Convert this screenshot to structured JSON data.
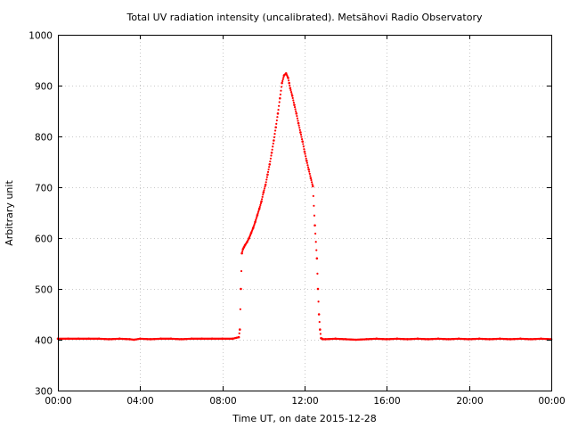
{
  "chart_data": {
    "type": "scatter",
    "title": "Total UV radiation intensity (uncalibrated). Metsähovi Radio Observatory",
    "xlabel": "Time UT, on date 2015-12-28",
    "ylabel": "Arbitrary unit",
    "xlim_hours": [
      0,
      24
    ],
    "ylim": [
      300,
      1000
    ],
    "x_ticks": [
      {
        "hours": 0,
        "label": "00:00"
      },
      {
        "hours": 4,
        "label": "04:00"
      },
      {
        "hours": 8,
        "label": "08:00"
      },
      {
        "hours": 12,
        "label": "12:00"
      },
      {
        "hours": 16,
        "label": "16:00"
      },
      {
        "hours": 20,
        "label": "20:00"
      },
      {
        "hours": 24,
        "label": "00:00"
      }
    ],
    "y_ticks": [
      300,
      400,
      500,
      600,
      700,
      800,
      900,
      1000
    ],
    "grid": true,
    "marker_color": "#ff0000",
    "series": [
      {
        "x_hours": [
          0.0,
          0.5,
          1.0,
          1.5,
          2.0,
          2.5,
          3.0,
          3.5,
          3.7,
          4.0,
          4.5,
          5.0,
          5.5,
          6.0,
          6.5,
          7.0,
          7.5,
          8.0,
          8.5,
          8.8,
          8.85,
          8.9,
          8.95,
          9.0,
          9.05,
          9.1,
          9.2,
          9.3,
          9.4,
          9.5,
          9.6,
          9.7,
          9.8,
          9.9,
          10.0,
          10.1,
          10.2,
          10.3,
          10.4,
          10.5,
          10.6,
          10.7,
          10.8,
          10.9,
          11.0,
          11.1,
          11.2,
          11.25,
          11.3,
          11.4,
          11.5,
          11.6,
          11.7,
          11.8,
          11.9,
          12.0,
          12.1,
          12.2,
          12.3,
          12.4,
          12.5,
          12.6,
          12.65,
          12.7,
          12.75,
          12.8,
          12.85,
          12.9,
          13.0,
          13.5,
          14.0,
          14.5,
          15.0,
          15.5,
          16.0,
          16.5,
          17.0,
          17.5,
          18.0,
          18.5,
          19.0,
          19.5,
          20.0,
          20.5,
          21.0,
          21.5,
          22.0,
          22.5,
          23.0,
          23.5,
          24.0
        ],
        "y": [
          402,
          402,
          402,
          402,
          402,
          401,
          402,
          401,
          400,
          402,
          401,
          402,
          402,
          401,
          402,
          402,
          402,
          402,
          402,
          405,
          420,
          500,
          570,
          578,
          582,
          586,
          592,
          600,
          610,
          620,
          632,
          645,
          658,
          672,
          690,
          705,
          725,
          745,
          768,
          792,
          818,
          845,
          875,
          905,
          920,
          924,
          915,
          905,
          895,
          880,
          862,
          845,
          826,
          808,
          790,
          770,
          752,
          735,
          718,
          702,
          625,
          560,
          500,
          450,
          420,
          403,
          402,
          401,
          401,
          402,
          401,
          400,
          401,
          402,
          401,
          402,
          401,
          402,
          401,
          402,
          401,
          402,
          401,
          402,
          401,
          402,
          401,
          402,
          401,
          402,
          401
        ]
      }
    ]
  }
}
